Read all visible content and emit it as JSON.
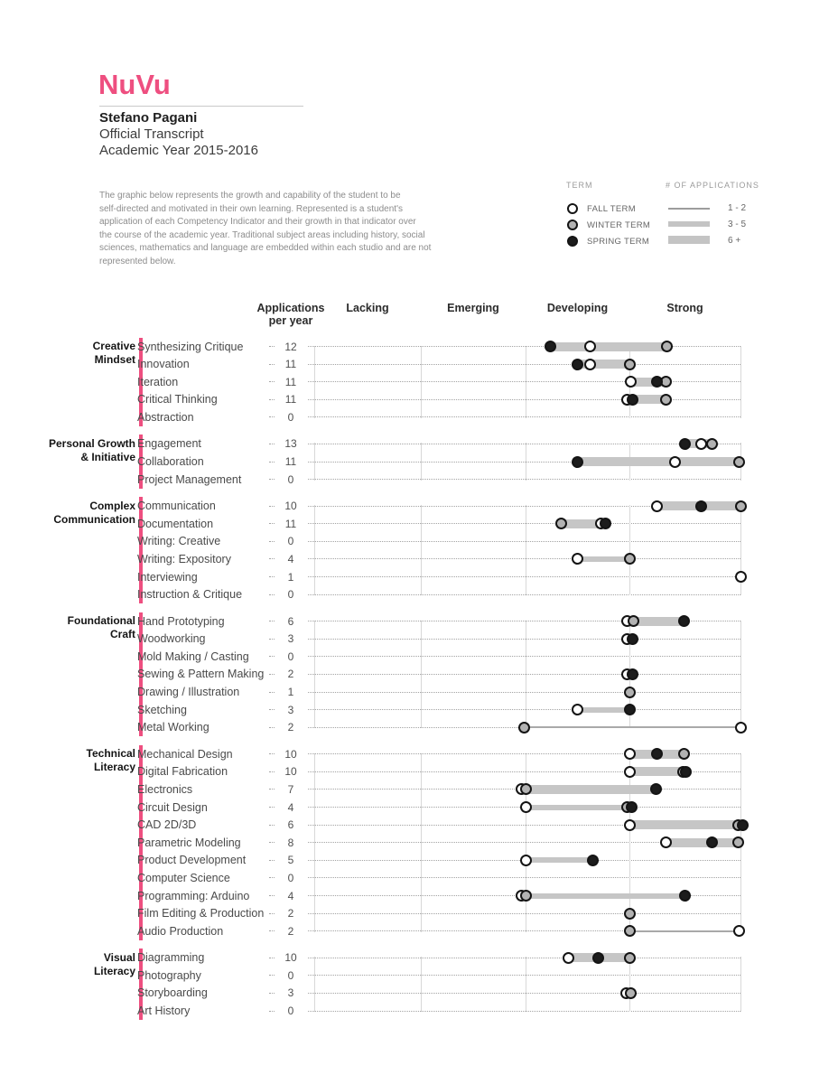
{
  "logo": "NuVu",
  "student": {
    "name": "Stefano Pagani",
    "line2": "Official Transcript",
    "line3": "Academic Year 2015-2016"
  },
  "intro": "The graphic below represents the growth and capability of the student to be\nself-directed and motivated in their own learning. Represented is a student's\napplication of each Competency Indicator  and their growth in that indicator over\nthe course of the academic year. Traditional subject areas including history, social\nsciences, mathematics and language are embedded within each studio and are not\nrepresented below.",
  "colors": {
    "accent": "#ee4f80",
    "dot_fall": "#ffffff",
    "dot_winter": "#b2b2b2",
    "dot_spring": "#1c1c1c",
    "bar": "#c6c6c6"
  },
  "legend": {
    "term_title": "TERM",
    "apps_title": "# OF APPLICATIONS",
    "terms": [
      {
        "label": "FALL TERM",
        "type": "fall"
      },
      {
        "label": "WINTER TERM",
        "type": "winter"
      },
      {
        "label": "SPRING TERM",
        "type": "spring"
      }
    ],
    "apps": [
      {
        "label": "1 - 2",
        "weight": "thin"
      },
      {
        "label": "3 - 5",
        "weight": "medium"
      },
      {
        "label": "6 +",
        "weight": "thick"
      }
    ]
  },
  "chart_data": {
    "type": "dot-range",
    "title": "Competency Indicator growth over academic year",
    "apps_header": "Applications\nper year",
    "axis_headers": [
      "Lacking",
      "Emerging",
      "Developing",
      "Strong"
    ],
    "scale_note": "term positions in column units: 0=left edge of Lacking, 1=Emerging, 2=Developing, 3=Strong, 4=right edge",
    "xlim": [
      0,
      4
    ],
    "groups": [
      {
        "label": "Creative\nMindset",
        "rows": [
          {
            "label": "Synthesizing Critique",
            "apps": 12,
            "fall": 2.62,
            "winter": 3.34,
            "spring": 2.24
          },
          {
            "label": "Innovation",
            "apps": 11,
            "fall": 2.62,
            "winter": 3.0,
            "spring": 2.5
          },
          {
            "label": "Iteration",
            "apps": 11,
            "fall": 3.01,
            "winter": 3.33,
            "spring": 3.25
          },
          {
            "label": "Critical Thinking",
            "apps": 11,
            "fall": 2.98,
            "winter": 3.33,
            "spring": 3.03
          },
          {
            "label": "Abstraction",
            "apps": 0
          }
        ]
      },
      {
        "label": "Personal Growth\n& Initiative",
        "rows": [
          {
            "label": "Engagement",
            "apps": 13,
            "fall": 3.65,
            "winter": 3.74,
            "spring": 3.5
          },
          {
            "label": "Collaboration",
            "apps": 11,
            "fall": 3.41,
            "winter": 3.99,
            "spring": 2.5
          },
          {
            "label": "Project Management",
            "apps": 0
          }
        ]
      },
      {
        "label": "Complex\nCommunication",
        "rows": [
          {
            "label": "Communication",
            "apps": 10,
            "fall": 3.25,
            "winter": 4.0,
            "spring": 3.65
          },
          {
            "label": "Documentation",
            "apps": 11,
            "fall": 2.73,
            "winter": 2.34,
            "spring": 2.77
          },
          {
            "label": "Writing: Creative",
            "apps": 0
          },
          {
            "label": "Writing: Expository",
            "apps": 4,
            "fall": 2.5,
            "winter": 3.0
          },
          {
            "label": "Interviewing",
            "apps": 1,
            "fall": 4.0
          },
          {
            "label": "Instruction & Critique",
            "apps": 0
          }
        ]
      },
      {
        "label": "Foundational\nCraft",
        "rows": [
          {
            "label": "Hand Prototyping",
            "apps": 6,
            "fall": 2.98,
            "winter": 3.04,
            "spring": 3.49
          },
          {
            "label": "Woodworking",
            "apps": 3,
            "fall": 2.98,
            "spring": 3.03
          },
          {
            "label": "Mold Making / Casting",
            "apps": 0
          },
          {
            "label": "Sewing & Pattern Making",
            "apps": 2,
            "fall": 2.98,
            "spring": 3.03
          },
          {
            "label": "Drawing / Illustration",
            "apps": 1,
            "winter": 3.0
          },
          {
            "label": "Sketching",
            "apps": 3,
            "fall": 2.5,
            "spring": 3.0
          },
          {
            "label": "Metal Working",
            "apps": 2,
            "winter": 1.99,
            "fall": 4.0
          }
        ]
      },
      {
        "label": "Technical\nLiteracy",
        "rows": [
          {
            "label": "Mechanical Design",
            "apps": 10,
            "fall": 3.0,
            "winter": 3.49,
            "spring": 3.25
          },
          {
            "label": "Digital Fabrication",
            "apps": 10,
            "fall": 3.0,
            "winter": 3.48,
            "spring": 3.51
          },
          {
            "label": "Electronics",
            "apps": 7,
            "fall": 1.96,
            "winter": 2.0,
            "spring": 3.24
          },
          {
            "label": "Circuit Design",
            "apps": 4,
            "fall": 2.0,
            "winter": 2.98,
            "spring": 3.02
          },
          {
            "label": "CAD 2D/3D",
            "apps": 6,
            "fall": 3.0,
            "winter": 3.98,
            "spring": 4.02
          },
          {
            "label": "Parametric Modeling",
            "apps": 8,
            "fall": 3.33,
            "winter": 3.98,
            "spring": 3.74
          },
          {
            "label": "Product Development",
            "apps": 5,
            "fall": 2.0,
            "spring": 2.65
          },
          {
            "label": "Computer Science",
            "apps": 0
          },
          {
            "label": "Programming: Arduino",
            "apps": 4,
            "fall": 1.96,
            "winter": 2.0,
            "spring": 3.5
          },
          {
            "label": "Film Editing & Production",
            "apps": 2,
            "winter": 3.0
          },
          {
            "label": "Audio Production",
            "apps": 2,
            "winter": 3.0,
            "fall": 3.99
          }
        ]
      },
      {
        "label": "Visual\nLiteracy",
        "rows": [
          {
            "label": "Diagramming",
            "apps": 10,
            "fall": 2.41,
            "winter": 3.0,
            "spring": 2.7
          },
          {
            "label": "Photography",
            "apps": 0
          },
          {
            "label": "Storyboarding",
            "apps": 3,
            "fall": 2.97,
            "winter": 3.01
          },
          {
            "label": "Art History",
            "apps": 0
          }
        ]
      }
    ]
  }
}
